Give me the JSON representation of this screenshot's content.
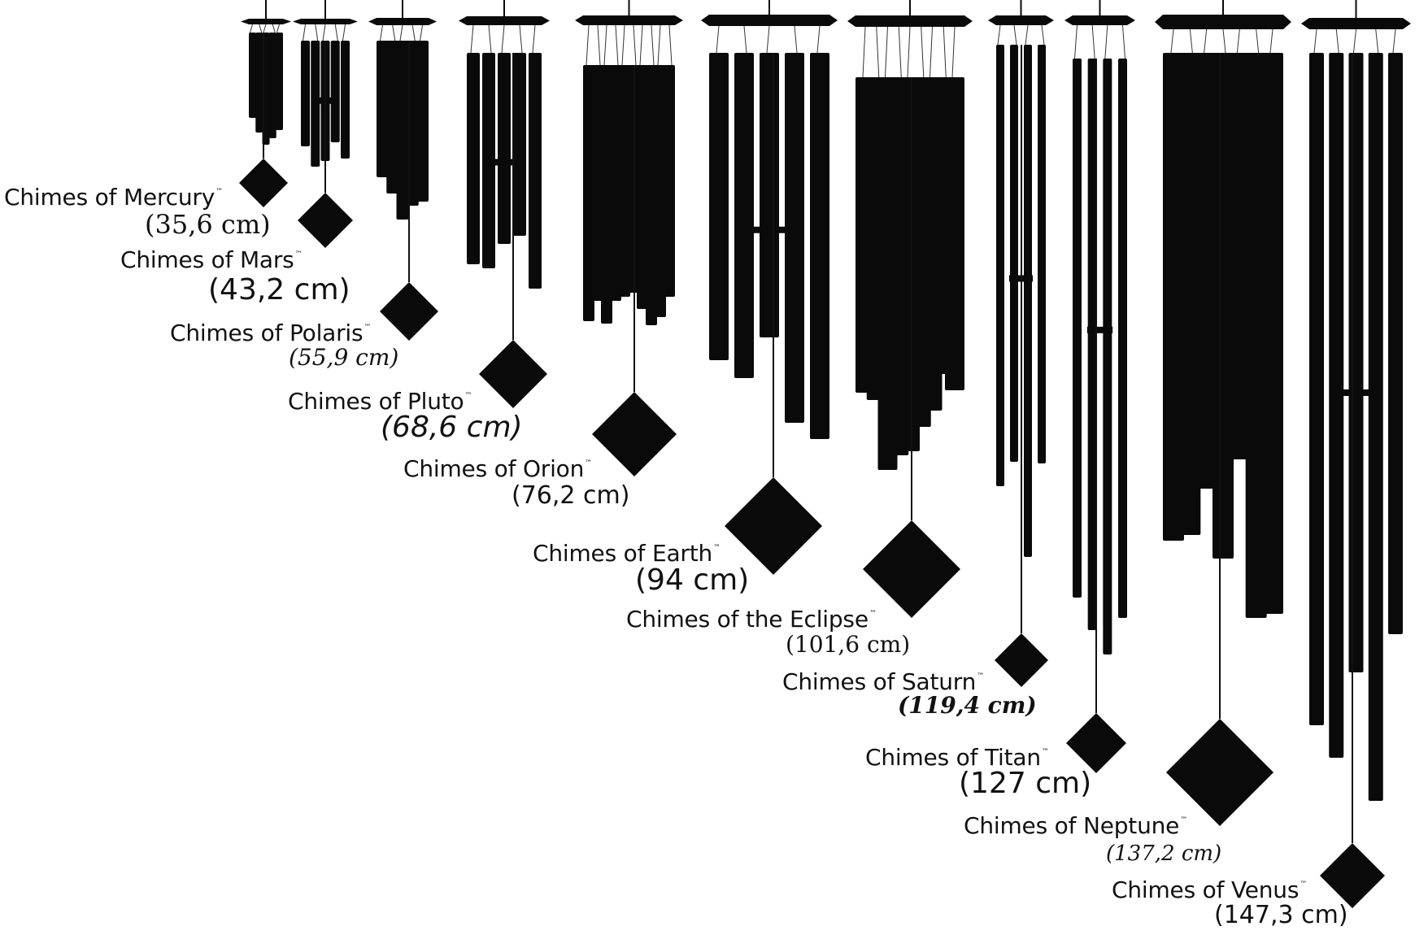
{
  "trademark": "™",
  "chimes": [
    {
      "name": "Chimes of Mercury",
      "size": "(35,6 cm)"
    },
    {
      "name": "Chimes of Mars",
      "size": "(43,2 cm)"
    },
    {
      "name": "Chimes of Polaris",
      "size": "(55,9 cm)"
    },
    {
      "name": "Chimes of Pluto",
      "size": "(68,6 cm)"
    },
    {
      "name": "Chimes of Orion",
      "size": "(76,2 cm)"
    },
    {
      "name": "Chimes of Earth",
      "size": "(94 cm)"
    },
    {
      "name": "Chimes of the Eclipse",
      "size": "(101,6 cm)"
    },
    {
      "name": "Chimes of Saturn",
      "size": "(119,4 cm)"
    },
    {
      "name": "Chimes of Titan",
      "size": "(127 cm)"
    },
    {
      "name": "Chimes of Neptune",
      "size": "(137,2 cm)"
    },
    {
      "name": "Chimes of Venus",
      "size": "(147,3 cm)"
    }
  ]
}
